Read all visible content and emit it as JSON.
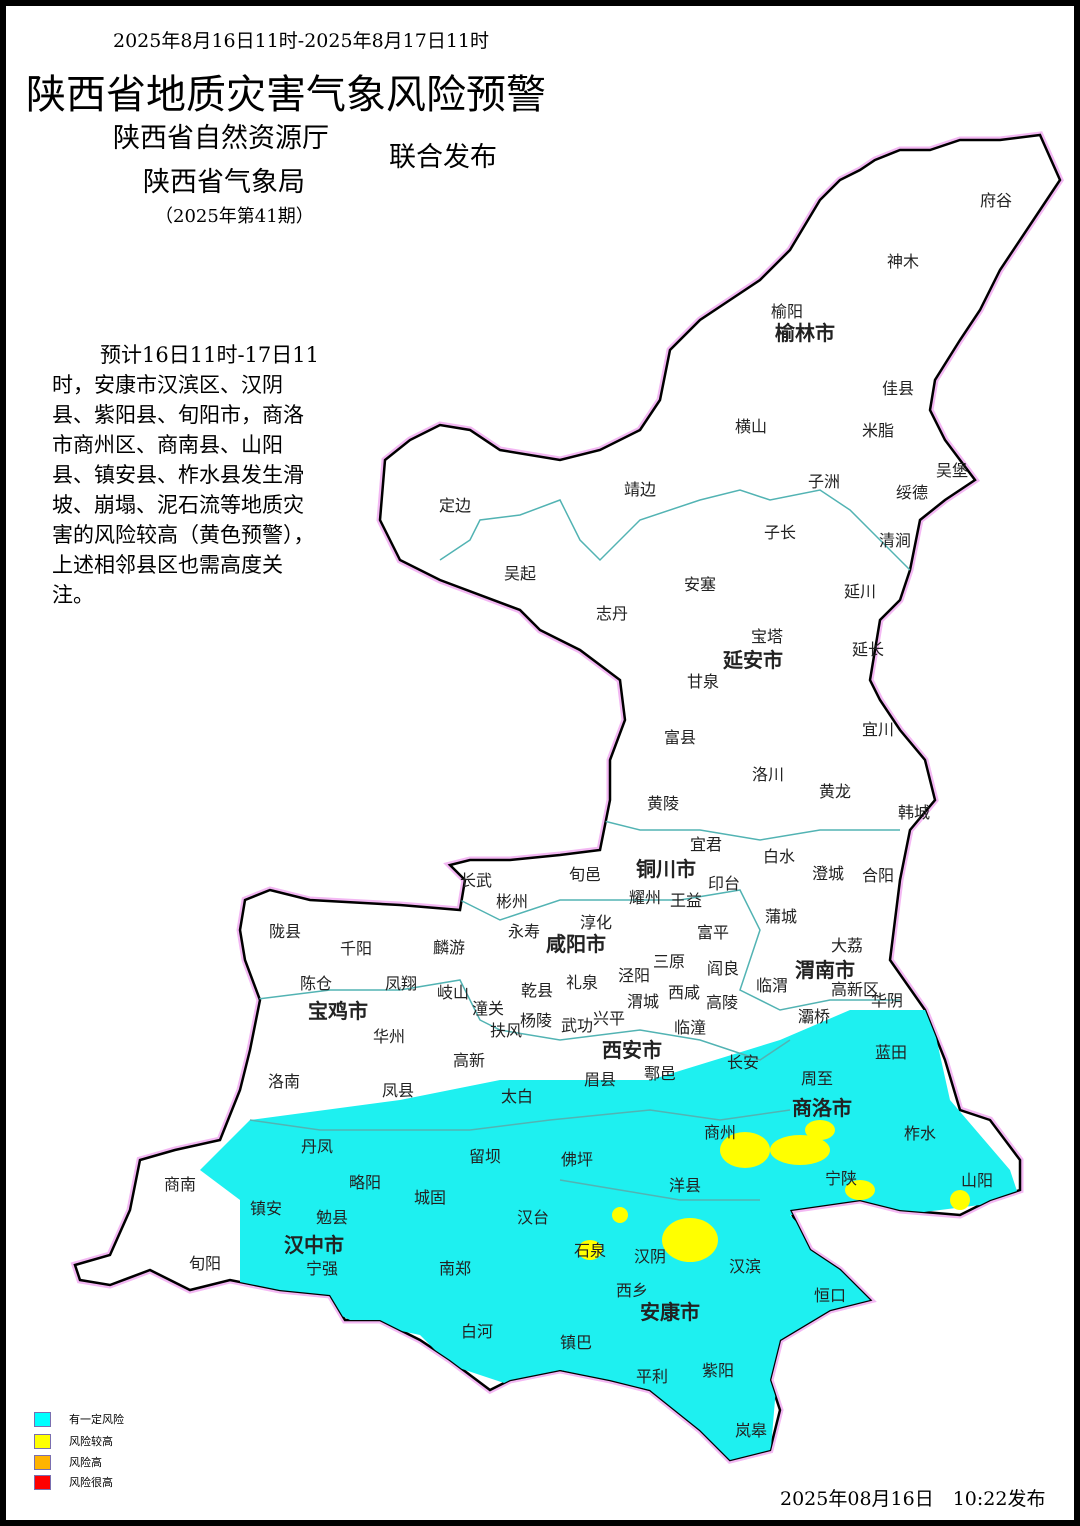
{
  "header": {
    "period": "2025年8月16日11时-2025年8月17日11时",
    "title": "陕西省地质灾害气象风险预警",
    "org1": "陕西省自然资源厅",
    "org2": "陕西省气象局",
    "joint": "联合发布",
    "issue": "（2025年第41期）"
  },
  "description": "预计16日11时-17日11时，安康市汉滨区、汉阴县、紫阳县、旬阳市，商洛市商州区、商南县、山阳县、镇安县、柞水县发生滑坡、崩塌、泥石流等地质灾害的风险较高（黄色预警），上述相邻县区也需高度关注。",
  "legend": [
    {
      "label": "有一定风险",
      "color": "#00ffff"
    },
    {
      "label": "风险较高",
      "color": "#ffff00"
    },
    {
      "label": "风险高",
      "color": "#ffb400"
    },
    {
      "label": "风险很高",
      "color": "#ff0000"
    }
  ],
  "map": {
    "cities": [
      "榆林市",
      "延安市",
      "铜川市",
      "咸阳市",
      "渭南市",
      "宝鸡市",
      "西安市",
      "商洛市",
      "汉中市",
      "安康市"
    ],
    "counties": [
      "府谷",
      "神木",
      "榆阳",
      "佳县",
      "横山",
      "米脂",
      "吴堡",
      "绥德",
      "子洲",
      "靖边",
      "定边",
      "子长",
      "清涧",
      "吴起",
      "安塞",
      "延川",
      "志丹",
      "宝塔",
      "延长",
      "甘泉",
      "宜川",
      "富县",
      "洛川",
      "黄龙",
      "黄陵",
      "韩城",
      "宜君",
      "白水",
      "澄城",
      "合阳",
      "长武",
      "旬邑",
      "彬州",
      "耀州",
      "王益",
      "印台",
      "陇县",
      "千阳",
      "麟游",
      "永寿",
      "淳化",
      "富平",
      "蒲城",
      "大荔",
      "陈仓",
      "凤翔",
      "岐山",
      "乾县",
      "礼泉",
      "泾阳",
      "三原",
      "阎良",
      "临渭",
      "高新区",
      "华阴",
      "潼关",
      "扶风",
      "杨陵",
      "武功",
      "兴平",
      "渭城",
      "西咸",
      "高陵",
      "临潼",
      "灞桥",
      "华州",
      "高新",
      "眉县",
      "鄠邑",
      "长安",
      "蓝田",
      "洛南",
      "凤县",
      "太白",
      "周至",
      "商州",
      "柞水",
      "丹凤",
      "留坝",
      "佛坪",
      "宁陕",
      "山阳",
      "商南",
      "略阳",
      "城固",
      "洋县",
      "镇安",
      "勉县",
      "汉台",
      "石泉",
      "汉阴",
      "汉滨",
      "旬阳",
      "宁强",
      "南郑",
      "西乡",
      "恒口",
      "白河",
      "镇巴",
      "紫阳",
      "平利",
      "岚皋",
      "镇坪"
    ]
  },
  "issued": "2025年08月16日　10:22发布"
}
